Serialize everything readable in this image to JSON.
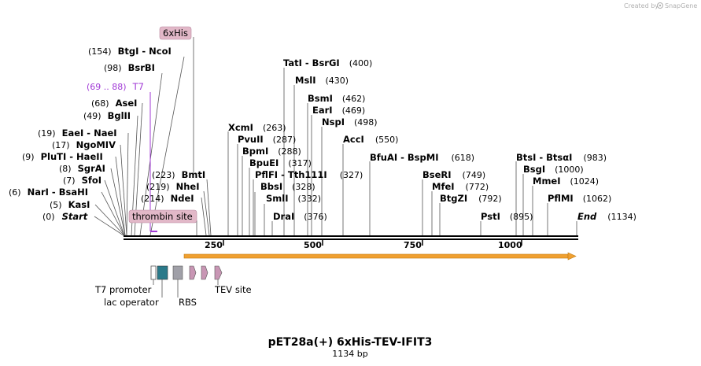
{
  "branding": {
    "created_by": "Created by",
    "brand": "SnapGene"
  },
  "plasmid": {
    "name": "pET28a(+) 6xHis-TEV-IFIT3",
    "size_label": "1134 bp",
    "length_bp": 1134
  },
  "colors": {
    "feature_pink": "#e2b8c8",
    "operator_teal": "#2a7a8a",
    "rbs_gray": "#a0a0a8",
    "tev_mauve": "#c896b4",
    "orf_orange": "#f0a030",
    "t7_purple": "#a13ad6"
  },
  "ruler_ticks": [
    "250",
    "500",
    "750",
    "1000"
  ],
  "enzymes_left": [
    {
      "pos": "(0)",
      "name": "Start",
      "italic": true
    },
    {
      "pos": "(5)",
      "name": "KasI"
    },
    {
      "pos": "(6)",
      "name": "NarI  -  BsaHI"
    },
    {
      "pos": "(7)",
      "name": "SfoI"
    },
    {
      "pos": "(8)",
      "name": "SgrAI"
    },
    {
      "pos": "(9)",
      "name": "PluTI  -  HaeII"
    },
    {
      "pos": "(17)",
      "name": "NgoMIV"
    },
    {
      "pos": "(19)",
      "name": "EaeI  -  NaeI"
    },
    {
      "pos": "(49)",
      "name": "BglII"
    },
    {
      "pos": "(68)",
      "name": "AseI"
    },
    {
      "pos": "(98)",
      "name": "BsrBI"
    },
    {
      "pos": "(154)",
      "name": "BtgI  -  NcoI"
    }
  ],
  "t7_label": {
    "pos": "(69 .. 88)",
    "name": "T7"
  },
  "enzymes_mid": [
    {
      "pos": "(214)",
      "name": "NdeI"
    },
    {
      "pos": "(219)",
      "name": "NheI"
    },
    {
      "pos": "(223)",
      "name": "BmtI"
    }
  ],
  "enzymes_right": [
    {
      "name": "XcmI",
      "pos": "(263)"
    },
    {
      "name": "PvuII",
      "pos": "(287)"
    },
    {
      "name": "BpmI",
      "pos": "(288)"
    },
    {
      "name": "BpuEI",
      "pos": "(317)"
    },
    {
      "name": "PflFI  -  Tth111I",
      "pos": "(327)"
    },
    {
      "name": "BbsI",
      "pos": "(328)"
    },
    {
      "name": "SmlI",
      "pos": "(332)"
    },
    {
      "name": "DraI",
      "pos": "(376)"
    },
    {
      "name": "TatI  -  BsrGI",
      "pos": "(400)"
    },
    {
      "name": "MslI",
      "pos": "(430)"
    },
    {
      "name": "BsmI",
      "pos": "(462)"
    },
    {
      "name": "EarI",
      "pos": "(469)"
    },
    {
      "name": "NspI",
      "pos": "(498)"
    },
    {
      "name": "AccI",
      "pos": "(550)"
    },
    {
      "name": "BfuAI  -  BspMI",
      "pos": "(618)"
    },
    {
      "name": "BseRI",
      "pos": "(749)"
    },
    {
      "name": "MfeI",
      "pos": "(772)"
    },
    {
      "name": "BtgZI",
      "pos": "(792)"
    },
    {
      "name": "PstI",
      "pos": "(895)"
    },
    {
      "name": "BtsI  -  BtsαI",
      "pos": "(983)"
    },
    {
      "name": "BsgI",
      "pos": "(1000)"
    },
    {
      "name": "MmeI",
      "pos": "(1024)"
    },
    {
      "name": "PflMI",
      "pos": "(1062)"
    },
    {
      "name": "End",
      "pos": "(1134)",
      "italic": true
    }
  ],
  "feature_tags": {
    "his": "6xHis",
    "thrombin": "thrombin site"
  },
  "feature_legend": {
    "t7_promoter": "T7 promoter",
    "lac_operator": "lac operator",
    "rbs": "RBS",
    "tev_site": "TEV site"
  }
}
